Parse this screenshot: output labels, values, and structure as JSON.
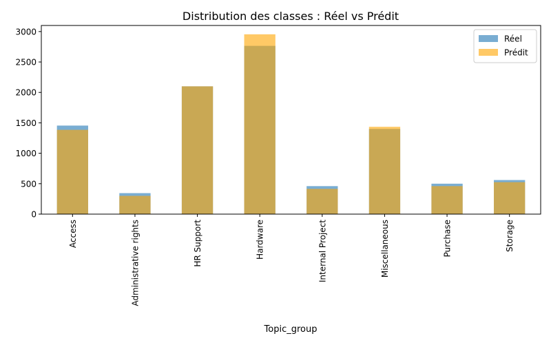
{
  "chart_data": {
    "type": "bar",
    "title": "Distribution des classes : Réel vs Prédit",
    "xlabel": "Topic_group",
    "ylabel": "",
    "categories": [
      "Access",
      "Administrative rights",
      "HR Support",
      "Hardware",
      "Internal Project",
      "Miscellaneous",
      "Purchase",
      "Storage"
    ],
    "series": [
      {
        "name": "Réel",
        "color": "#1f77b4",
        "opacity": 0.6,
        "values": [
          1455,
          345,
          2100,
          2765,
          460,
          1400,
          500,
          560
        ]
      },
      {
        "name": "Prédit",
        "color": "#ffa500",
        "opacity": 0.6,
        "values": [
          1385,
          300,
          2100,
          2955,
          415,
          1435,
          460,
          525
        ]
      }
    ],
    "ylim": [
      0,
      3100
    ],
    "yticks": [
      0,
      500,
      1000,
      1500,
      2000,
      2500,
      3000
    ],
    "grid": false,
    "legend_position": "upper right",
    "overlay": true
  }
}
